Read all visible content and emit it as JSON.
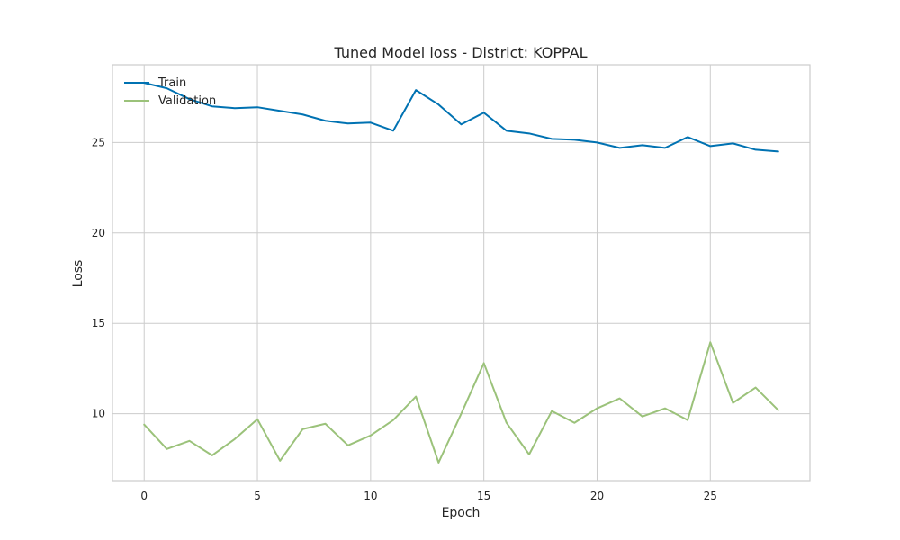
{
  "chart_data": {
    "type": "line",
    "title": "Tuned Model loss - District: KOPPAL",
    "xlabel": "Epoch",
    "ylabel": "Loss",
    "xlim": [
      -1.4,
      29.4
    ],
    "ylim": [
      6.3,
      29.3
    ],
    "xticks": [
      0,
      5,
      10,
      15,
      20,
      25
    ],
    "yticks": [
      10,
      15,
      20,
      25
    ],
    "grid": true,
    "legend": "top-left",
    "x": [
      0,
      1,
      2,
      3,
      4,
      5,
      6,
      7,
      8,
      9,
      10,
      11,
      12,
      13,
      14,
      15,
      16,
      17,
      18,
      19,
      20,
      21,
      22,
      23,
      24,
      25,
      26,
      27,
      28
    ],
    "series": [
      {
        "name": "Train",
        "color": "#0072b2",
        "values": [
          28.3,
          28.0,
          27.4,
          27.0,
          26.9,
          26.95,
          26.75,
          26.55,
          26.2,
          26.05,
          26.1,
          25.65,
          27.9,
          27.1,
          26.0,
          26.65,
          25.65,
          25.5,
          25.2,
          25.15,
          25.0,
          24.7,
          24.85,
          24.7,
          25.3,
          24.8,
          24.95,
          24.6,
          24.5
        ]
      },
      {
        "name": "Validation",
        "color": "#9bc27a",
        "values": [
          9.4,
          8.05,
          8.5,
          7.7,
          8.6,
          9.7,
          7.4,
          9.15,
          9.45,
          8.25,
          8.8,
          9.65,
          10.95,
          7.3,
          10.0,
          12.8,
          9.5,
          7.75,
          10.15,
          9.5,
          10.3,
          10.85,
          9.85,
          10.3,
          9.65,
          13.95,
          10.6,
          11.45,
          10.2
        ]
      }
    ]
  }
}
